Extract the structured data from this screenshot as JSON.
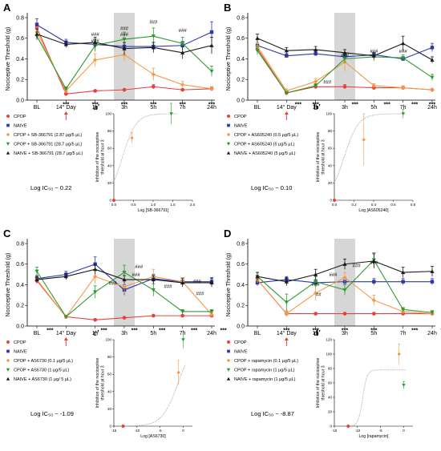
{
  "colors": {
    "CPOP": "#e8403a",
    "NAIVE": "#2b3aa8",
    "orange": "#f39a4a",
    "green": "#2e9a2e",
    "black": "#1a1a1a",
    "shade": "#d6d6d6",
    "arrow": "#e8403a",
    "fit": "#a8a8a8"
  },
  "chart_data": [
    {
      "panel": "A",
      "type": "line",
      "ylabel": "Nociceptive Threshold (g)",
      "yticks": [
        "0.0",
        "0.2",
        "0.4",
        "0.6",
        "0.8"
      ],
      "ylim": [
        0,
        0.8
      ],
      "categories": [
        "BL",
        "14° Day",
        "1h",
        "3h",
        "5h",
        "7h",
        "24h"
      ],
      "series": [
        {
          "name": "CPOP",
          "color": "CPOP",
          "marker": "circle",
          "values": [
            0.7,
            0.06,
            0.09,
            0.1,
            0.13,
            0.1,
            0.11
          ],
          "err": [
            0.05,
            0.01,
            0.01,
            0.01,
            0.02,
            0.01,
            0.02
          ]
        },
        {
          "name": "NAIVE",
          "color": "NAIVE",
          "marker": "square",
          "values": [
            0.73,
            0.56,
            0.54,
            0.52,
            0.52,
            0.53,
            0.66
          ],
          "err": [
            0.06,
            0.03,
            0.05,
            0.04,
            0.04,
            0.04,
            0.1
          ]
        },
        {
          "name": "CPOP + SB-366791 (2.87 μg/5 μL)",
          "color": "orange",
          "marker": "diamond",
          "values": [
            0.66,
            0.09,
            0.39,
            0.44,
            0.25,
            0.15,
            0.11
          ],
          "err": [
            0.05,
            0.02,
            0.06,
            0.06,
            0.06,
            0.03,
            0.02
          ]
        },
        {
          "name": "CPOP + SB-366791 (28.7 μg/5 μL)",
          "color": "green",
          "marker": "triangle-down",
          "values": [
            0.62,
            0.11,
            0.53,
            0.59,
            0.62,
            0.55,
            0.28
          ],
          "err": [
            0.04,
            0.02,
            0.06,
            0.07,
            0.08,
            0.06,
            0.05
          ]
        },
        {
          "name": "NAIVE + SB-366791 (28.7 μg/5 μL)",
          "color": "black",
          "marker": "triangle-up",
          "values": [
            0.64,
            0.54,
            0.56,
            0.5,
            0.51,
            0.46,
            0.53
          ],
          "err": [
            0.05,
            0.03,
            0.05,
            0.06,
            0.05,
            0.06,
            0.08
          ]
        }
      ],
      "stars": [
        {
          "x": 1,
          "text": "***"
        },
        {
          "x": 2,
          "text": "***"
        },
        {
          "x": 3,
          "text": "***"
        },
        {
          "x": 4,
          "text": "***"
        },
        {
          "x": 5,
          "text": "***"
        },
        {
          "x": 6,
          "text": "***"
        }
      ],
      "hashes": [
        {
          "x": 2,
          "y": 0.62,
          "text": "###"
        },
        {
          "x": 2,
          "y": 0.56,
          "text": "###"
        },
        {
          "x": 3,
          "y": 0.68,
          "text": "###"
        },
        {
          "x": 3,
          "y": 0.62,
          "text": "###"
        },
        {
          "x": 4,
          "y": 0.74,
          "text": "###"
        },
        {
          "x": 5,
          "y": 0.66,
          "text": "###"
        }
      ],
      "logIC50": "Log IC₅₀ ~ 0.22"
    },
    {
      "panel": "B",
      "type": "line",
      "ylabel": "Nociceptive Threshold (g)",
      "yticks": [
        "0.0",
        "0.2",
        "0.4",
        "0.6",
        "0.8"
      ],
      "ylim": [
        0,
        0.8
      ],
      "categories": [
        "BL",
        "14° Day",
        "1h",
        "3h",
        "5h",
        "7h",
        "24h"
      ],
      "series": [
        {
          "name": "CPOP",
          "color": "CPOP",
          "marker": "circle",
          "values": [
            0.5,
            0.07,
            0.13,
            0.13,
            0.12,
            0.12,
            0.1
          ],
          "err": [
            0.03,
            0.01,
            0.02,
            0.02,
            0.01,
            0.01,
            0.01
          ]
        },
        {
          "name": "NAIVE",
          "color": "NAIVE",
          "marker": "square",
          "values": [
            0.53,
            0.43,
            0.45,
            0.42,
            0.44,
            0.4,
            0.51
          ],
          "err": [
            0.03,
            0.02,
            0.02,
            0.02,
            0.02,
            0.02,
            0.04
          ]
        },
        {
          "name": "CPOP + AS605240 (0.5 μg/5 μL)",
          "color": "orange",
          "marker": "diamond",
          "values": [
            0.52,
            0.09,
            0.18,
            0.37,
            0.14,
            0.12,
            0.1
          ],
          "err": [
            0.04,
            0.02,
            0.03,
            0.09,
            0.02,
            0.02,
            0.01
          ]
        },
        {
          "name": "CPOP + AS605240 (5 μg/5 μL)",
          "color": "green",
          "marker": "triangle-down",
          "values": [
            0.48,
            0.07,
            0.14,
            0.4,
            0.42,
            0.41,
            0.22
          ],
          "err": [
            0.04,
            0.01,
            0.02,
            0.04,
            0.04,
            0.03,
            0.03
          ]
        },
        {
          "name": "NAIVE + AS605240 (5 μg/5 μL)",
          "color": "black",
          "marker": "triangle-up",
          "values": [
            0.6,
            0.48,
            0.49,
            0.46,
            0.43,
            0.55,
            0.39
          ],
          "err": [
            0.04,
            0.03,
            0.03,
            0.03,
            0.03,
            0.07,
            0.03
          ]
        }
      ],
      "stars": [
        {
          "x": 1.4,
          "text": "***"
        },
        {
          "x": 2,
          "text": "***"
        },
        {
          "x": 3.35,
          "text": "***"
        },
        {
          "x": 4.45,
          "text": "***"
        },
        {
          "x": 5.4,
          "text": "***"
        },
        {
          "x": 6,
          "text": "***"
        }
      ],
      "hashes": [
        {
          "x": 3,
          "y": 0.42,
          "text": "###"
        },
        {
          "x": 4,
          "y": 0.46,
          "text": "###"
        },
        {
          "x": 5,
          "y": 0.46,
          "text": "###"
        },
        {
          "x": 2.4,
          "y": 0.16,
          "text": "###"
        }
      ],
      "logIC50": "Log IC₅₀ ~ 0.10"
    },
    {
      "panel": "C",
      "type": "line",
      "ylabel": "Nociceptive Threshold (g)",
      "yticks": [
        "0.0",
        "0.2",
        "0.4",
        "0.6",
        "0.8"
      ],
      "ylim": [
        0,
        0.8
      ],
      "categories": [
        "BL",
        "14° Day",
        "1h",
        "3h",
        "5h",
        "7h",
        "24h"
      ],
      "series": [
        {
          "name": "CPOP",
          "color": "CPOP",
          "marker": "circle",
          "values": [
            0.44,
            0.09,
            0.06,
            0.08,
            0.1,
            0.1,
            0.1
          ],
          "err": [
            0.03,
            0.01,
            0.01,
            0.01,
            0.01,
            0.01,
            0.01
          ]
        },
        {
          "name": "NAIVE",
          "color": "NAIVE",
          "marker": "square",
          "values": [
            0.46,
            0.5,
            0.6,
            0.35,
            0.46,
            0.43,
            0.43
          ],
          "err": [
            0.03,
            0.03,
            0.07,
            0.05,
            0.04,
            0.04,
            0.04
          ]
        },
        {
          "name": "CPOP + AS6730 (0.1 μg/5 μL)",
          "color": "orange",
          "marker": "diamond",
          "values": [
            0.45,
            0.09,
            0.48,
            0.38,
            0.48,
            0.43,
            0.11
          ],
          "err": [
            0.03,
            0.01,
            0.07,
            0.06,
            0.07,
            0.04,
            0.02
          ]
        },
        {
          "name": "CPOP + AS6730 (1 μg/5 μL)",
          "color": "green",
          "marker": "triangle-down",
          "values": [
            0.53,
            0.09,
            0.33,
            0.52,
            0.35,
            0.14,
            0.14
          ],
          "err": [
            0.04,
            0.01,
            0.06,
            0.07,
            0.06,
            0.02,
            0.02
          ]
        },
        {
          "name": "NAIVE + AS6730 (1 μg/ 5 μL)",
          "color": "black",
          "marker": "triangle-up",
          "values": [
            0.45,
            0.48,
            0.55,
            0.45,
            0.45,
            0.42,
            0.42
          ],
          "err": [
            0.03,
            0.03,
            0.05,
            0.04,
            0.04,
            0.04,
            0.04
          ]
        }
      ],
      "stars": [
        {
          "x": 0.45,
          "text": "***"
        },
        {
          "x": 2.3,
          "text": "***"
        },
        {
          "x": 3.35,
          "text": "***"
        },
        {
          "x": 4.3,
          "text": "***"
        },
        {
          "x": 5.4,
          "text": "***"
        },
        {
          "x": 6.4,
          "text": "***"
        }
      ],
      "hashes": [
        {
          "x": 3.5,
          "y": 0.56,
          "text": "###"
        },
        {
          "x": 3.4,
          "y": 0.48,
          "text": "###"
        },
        {
          "x": 2.6,
          "y": 0.4,
          "text": "###"
        },
        {
          "x": 4.5,
          "y": 0.37,
          "text": "###"
        },
        {
          "x": 5.5,
          "y": 0.42,
          "text": "###"
        },
        {
          "x": 5.6,
          "y": 0.3,
          "text": "###"
        }
      ],
      "logIC50": "Log IC₅₀ ~ -1.09"
    },
    {
      "panel": "D",
      "type": "line",
      "ylabel": "Nociceptive Threshold (g)",
      "yticks": [
        "0.0",
        "0.2",
        "0.4",
        "0.6",
        "0.8"
      ],
      "ylim": [
        0,
        0.8
      ],
      "categories": [
        "BL",
        "14° Day",
        "1h",
        "3h",
        "5h",
        "7h",
        "24h"
      ],
      "series": [
        {
          "name": "CPOP",
          "color": "CPOP",
          "marker": "circle",
          "values": [
            0.45,
            0.12,
            0.12,
            0.12,
            0.12,
            0.12,
            0.12
          ],
          "err": [
            0.03,
            0.02,
            0.01,
            0.01,
            0.01,
            0.01,
            0.01
          ]
        },
        {
          "name": "NAIVE",
          "color": "NAIVE",
          "marker": "square",
          "values": [
            0.42,
            0.45,
            0.42,
            0.43,
            0.43,
            0.43,
            0.43
          ],
          "err": [
            0.03,
            0.03,
            0.03,
            0.03,
            0.03,
            0.03,
            0.03
          ]
        },
        {
          "name": "CPOP + rapamycin (0.1 μg/5 μL)",
          "color": "orange",
          "marker": "diamond",
          "values": [
            0.45,
            0.12,
            0.32,
            0.47,
            0.25,
            0.14,
            0.12
          ],
          "err": [
            0.03,
            0.03,
            0.07,
            0.05,
            0.05,
            0.02,
            0.02
          ]
        },
        {
          "name": "CPOP + rapamycin (1 μg/5 μL)",
          "color": "green",
          "marker": "triangle-down",
          "values": [
            0.48,
            0.23,
            0.43,
            0.35,
            0.64,
            0.16,
            0.13
          ],
          "err": [
            0.04,
            0.08,
            0.05,
            0.05,
            0.07,
            0.02,
            0.02
          ]
        },
        {
          "name": "NAIVE + rapamycin (1 μg/5 μL)",
          "color": "black",
          "marker": "triangle-up",
          "values": [
            0.48,
            0.43,
            0.5,
            0.6,
            0.63,
            0.52,
            0.53
          ],
          "err": [
            0.04,
            0.04,
            0.05,
            0.05,
            0.07,
            0.05,
            0.05
          ]
        }
      ],
      "stars": [
        {
          "x": 1,
          "text": "***"
        },
        {
          "x": 2,
          "text": "***"
        },
        {
          "x": 3,
          "text": "***"
        },
        {
          "x": 4,
          "text": "***"
        },
        {
          "x": 5.4,
          "text": "***"
        },
        {
          "x": 6.4,
          "text": "***"
        }
      ],
      "hashes": [
        {
          "x": 2.0,
          "y": 0.39,
          "text": "###"
        },
        {
          "x": 2.1,
          "y": 0.29,
          "text": "##"
        },
        {
          "x": 2.6,
          "y": 0.48,
          "text": "###"
        },
        {
          "x": 3.4,
          "y": 0.57,
          "text": "###"
        },
        {
          "x": 4.0,
          "y": 0.6,
          "text": "###"
        }
      ],
      "logIC50": "Log IC₅₀ ~ -8.87"
    }
  ],
  "insets": [
    {
      "panel": "a'",
      "type": "scatter",
      "ylabel": "Inhibition of the nociceptive threshold at hour 3",
      "xlabel": "Log [SB-366791]",
      "xticks": [
        "0.0",
        "0.5",
        "1.0",
        "1.5",
        "2.0"
      ],
      "xlim": [
        0,
        2.0
      ],
      "yticks": [
        "0",
        "20",
        "40",
        "60",
        "80",
        "100"
      ],
      "ylim": [
        0,
        100
      ],
      "points": [
        {
          "x": 0.0,
          "y": 0,
          "err": 0,
          "color": "CPOP"
        },
        {
          "x": 0.46,
          "y": 72,
          "err": 6,
          "color": "orange"
        },
        {
          "x": 1.46,
          "y": 100,
          "err": 12,
          "color": "green"
        }
      ],
      "fit": {
        "logIC50": 0.22,
        "bottom": 0,
        "top": 100,
        "hill": 2.5,
        "x0": 0.0,
        "x1": 1.6
      }
    },
    {
      "panel": "b'",
      "type": "scatter",
      "ylabel": "Inhibition of the nociceptive threshold at hour 3",
      "xlabel": "Log [AS605240]",
      "xticks": [
        "0.0",
        "0.2",
        "0.4",
        "0.6",
        "0.8"
      ],
      "xlim": [
        0,
        0.8
      ],
      "yticks": [
        "0",
        "20",
        "40",
        "60",
        "80",
        "100"
      ],
      "ylim": [
        0,
        100
      ],
      "points": [
        {
          "x": 0.0,
          "y": 0,
          "err": 0,
          "color": "CPOP"
        },
        {
          "x": 0.3,
          "y": 70,
          "err": 30,
          "color": "orange"
        },
        {
          "x": 0.7,
          "y": 100,
          "err": 5,
          "color": "green"
        }
      ],
      "fit": {
        "logIC50": 0.1,
        "bottom": 0,
        "top": 100,
        "hill": 6.0,
        "x0": 0.0,
        "x1": 0.72
      }
    },
    {
      "panel": "c'",
      "type": "scatter",
      "ylabel": "Inhibition of the nociceptive threshold at hour 3",
      "xlabel": "Log [AS6730]",
      "xticks": [
        "-15",
        "-10",
        "-5",
        "0"
      ],
      "xlim": [
        -15,
        2
      ],
      "yticks": [
        "0",
        "20",
        "40",
        "60",
        "80",
        "100"
      ],
      "ylim": [
        0,
        100
      ],
      "points": [
        {
          "x": -13,
          "y": 0,
          "err": 0,
          "color": "CPOP"
        },
        {
          "x": -1.0,
          "y": 62,
          "err": 14,
          "color": "orange"
        },
        {
          "x": 0.0,
          "y": 100,
          "err": 10,
          "color": "green"
        }
      ],
      "fit": {
        "logIC50": -1.09,
        "bottom": 0,
        "top": 100,
        "hill": 0.25,
        "x0": -13,
        "x1": 0.5
      }
    },
    {
      "panel": "d'",
      "type": "scatter",
      "ylabel": "Inhibition of the nociceptive threshold at hour 3",
      "xlabel": "Log [rapamycin]",
      "xticks": [
        "-15",
        "-10",
        "-5",
        "0"
      ],
      "xlim": [
        -15,
        2
      ],
      "yticks": [
        "0",
        "20",
        "40",
        "60",
        "80",
        "100",
        "120"
      ],
      "ylim": [
        0,
        120
      ],
      "points": [
        {
          "x": -12,
          "y": 0,
          "err": 0,
          "color": "CPOP"
        },
        {
          "x": -1.0,
          "y": 100,
          "err": 14,
          "color": "orange"
        },
        {
          "x": 0.0,
          "y": 57,
          "err": 5,
          "color": "green"
        }
      ],
      "fit": {
        "logIC50": -8.87,
        "bottom": 0,
        "top": 78,
        "hill": 0.9,
        "x0": -12,
        "x1": 0.5
      }
    }
  ]
}
